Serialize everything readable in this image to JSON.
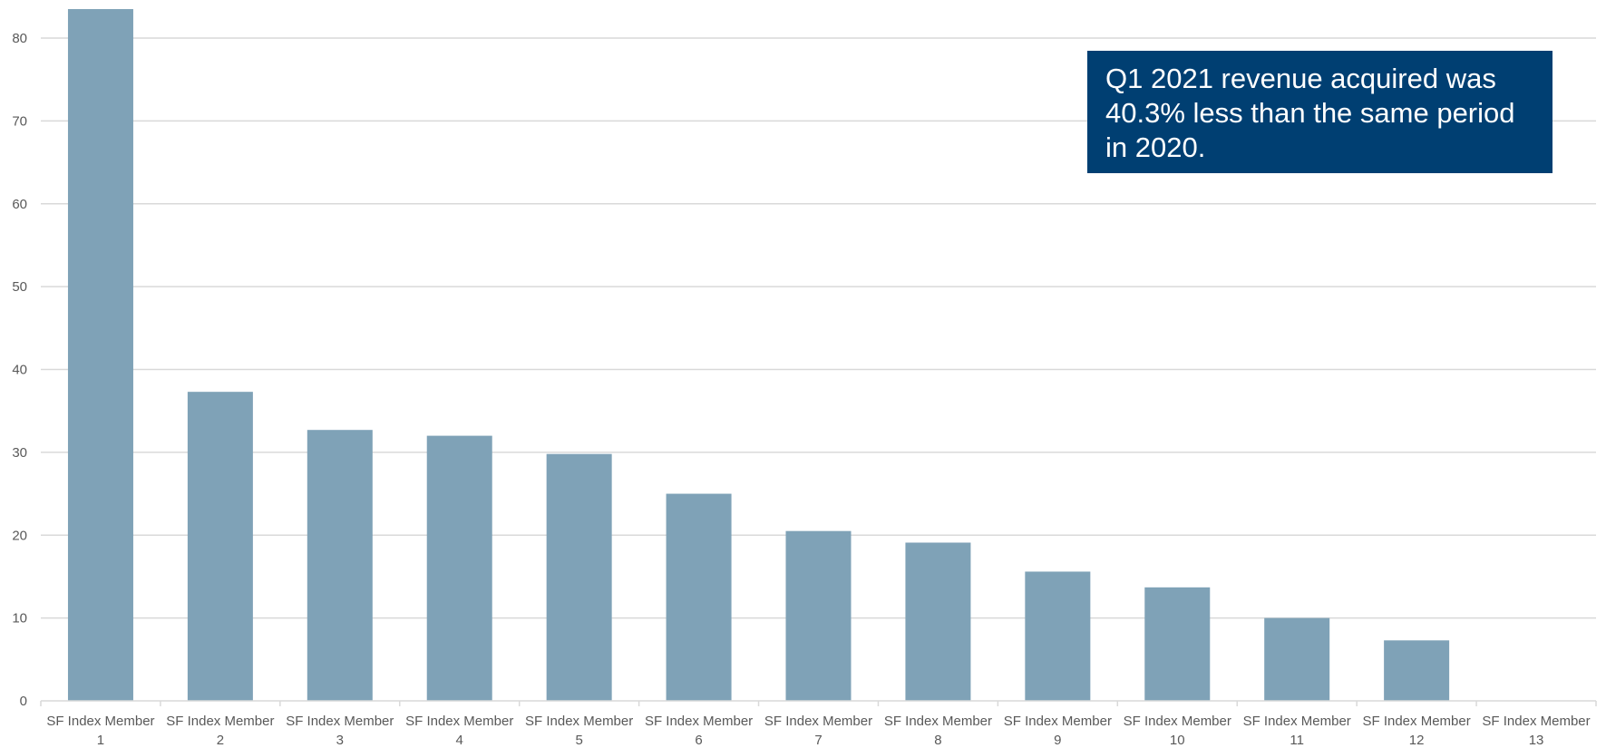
{
  "chart_data": {
    "type": "bar",
    "categories": [
      [
        "SF Index Member",
        "1"
      ],
      [
        "SF Index Member",
        "2"
      ],
      [
        "SF Index Member",
        "3"
      ],
      [
        "SF Index Member",
        "4"
      ],
      [
        "SF Index Member",
        "5"
      ],
      [
        "SF Index Member",
        "6"
      ],
      [
        "SF Index Member",
        "7"
      ],
      [
        "SF Index Member",
        "8"
      ],
      [
        "SF Index Member",
        "9"
      ],
      [
        "SF Index Member",
        "10"
      ],
      [
        "SF Index Member",
        "11"
      ],
      [
        "SF Index Member",
        "12"
      ],
      [
        "SF Index Member",
        "13"
      ]
    ],
    "values": [
      83.5,
      37.3,
      32.7,
      32.0,
      29.8,
      25.0,
      20.5,
      19.1,
      15.6,
      13.7,
      10.0,
      7.3,
      0
    ],
    "title": "",
    "xlabel": "",
    "ylabel": "",
    "ylim": [
      0,
      80
    ],
    "yticks": [
      0,
      10,
      20,
      30,
      40,
      50,
      60,
      70,
      80
    ],
    "grid": true,
    "bar_color": "#7fa2b7",
    "annotation": {
      "text": "Q1 2021 revenue acquired was 40.3% less than the same period in 2020.",
      "background": "#003f72",
      "color": "#ffffff"
    }
  }
}
